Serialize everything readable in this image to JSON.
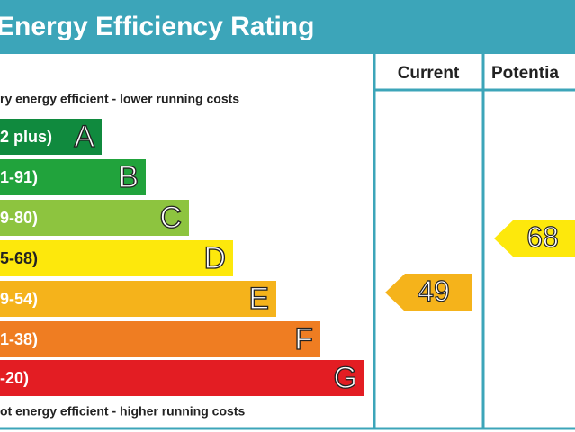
{
  "header": {
    "title": "Energy Efficiency Rating"
  },
  "columns": [
    "Current",
    "Potentia"
  ],
  "top_note": "ry energy efficient - lower running costs",
  "bottom_note": "ot energy efficient - higher running costs",
  "bands": [
    {
      "range": "2 plus)",
      "letter": "A"
    },
    {
      "range": "1-91)",
      "letter": "B"
    },
    {
      "range": "9-80)",
      "letter": "C"
    },
    {
      "range": "5-68)",
      "letter": "D"
    },
    {
      "range": "9-54)",
      "letter": "E"
    },
    {
      "range": "1-38)",
      "letter": "F"
    },
    {
      "range": "-20)",
      "letter": "G"
    }
  ],
  "current": 49,
  "potential": 68
}
